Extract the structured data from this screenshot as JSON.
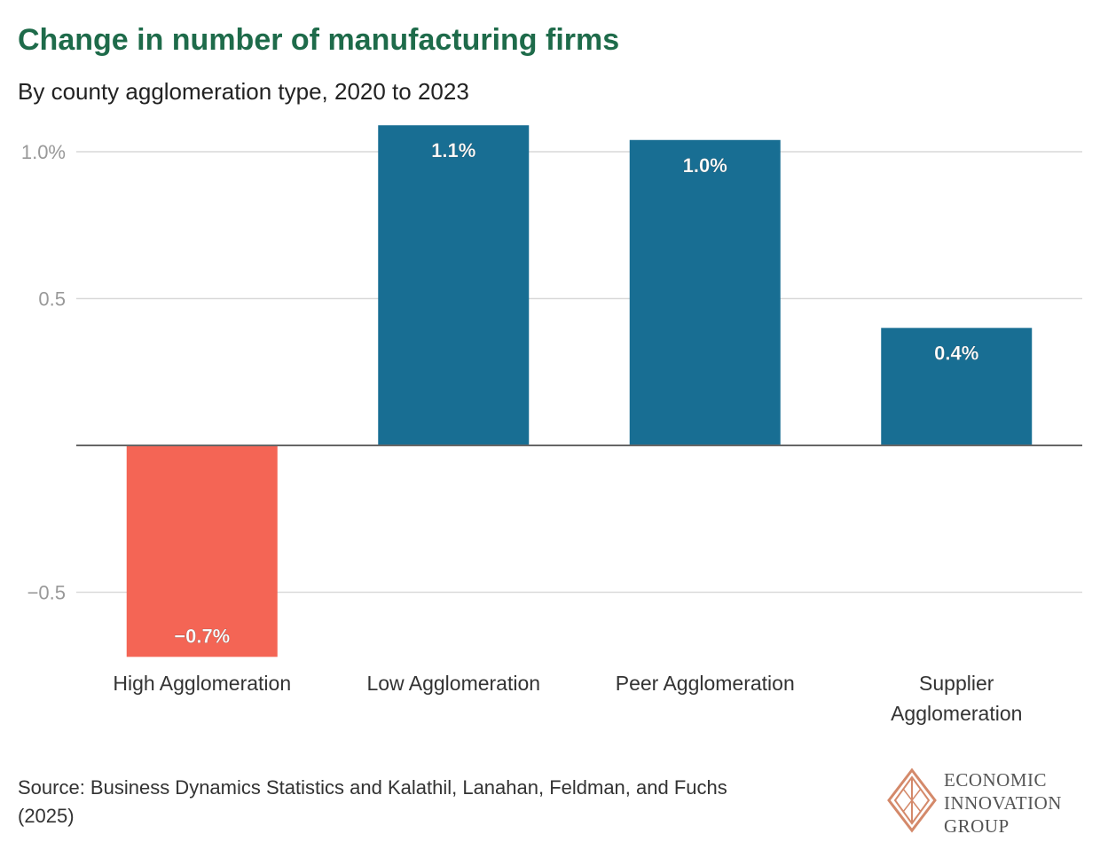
{
  "chart_data": {
    "type": "bar",
    "title": "Change in number of manufacturing firms",
    "subtitle": "By county agglomeration type, 2020 to 2023",
    "categories": [
      "High Agglomeration",
      "Low Agglomeration",
      "Peer Agglomeration",
      "Supplier Agglomeration"
    ],
    "category_lines": [
      [
        "High Agglomeration"
      ],
      [
        "Low Agglomeration"
      ],
      [
        "Peer Agglomeration"
      ],
      [
        "Supplier",
        "Agglomeration"
      ]
    ],
    "values": [
      -0.72,
      1.09,
      1.04,
      0.4
    ],
    "value_labels": [
      "−0.7%",
      "1.1%",
      "1.0%",
      "0.4%"
    ],
    "y_ticks": [
      -0.5,
      0.5,
      1.0
    ],
    "y_tick_labels": [
      "−0.5",
      "0.5",
      "1.0%"
    ],
    "ylim": [
      -0.72,
      1.09
    ],
    "xlabel": "",
    "ylabel": "",
    "grid": true,
    "colors": {
      "positive": "#186e93",
      "negative": "#f46555",
      "grid": "#d9d9d9",
      "axis": "#666666",
      "tick": "#999999"
    }
  },
  "footer": {
    "source_line1": "Source: Business Dynamics Statistics and Kalathil, Lanahan, Feldman, and Fuchs",
    "source_line2": "(2025)",
    "logo_line1": "ECONOMIC",
    "logo_line2": "INNOVATION",
    "logo_line3": "GROUP",
    "logo_color": "#d4896a"
  }
}
